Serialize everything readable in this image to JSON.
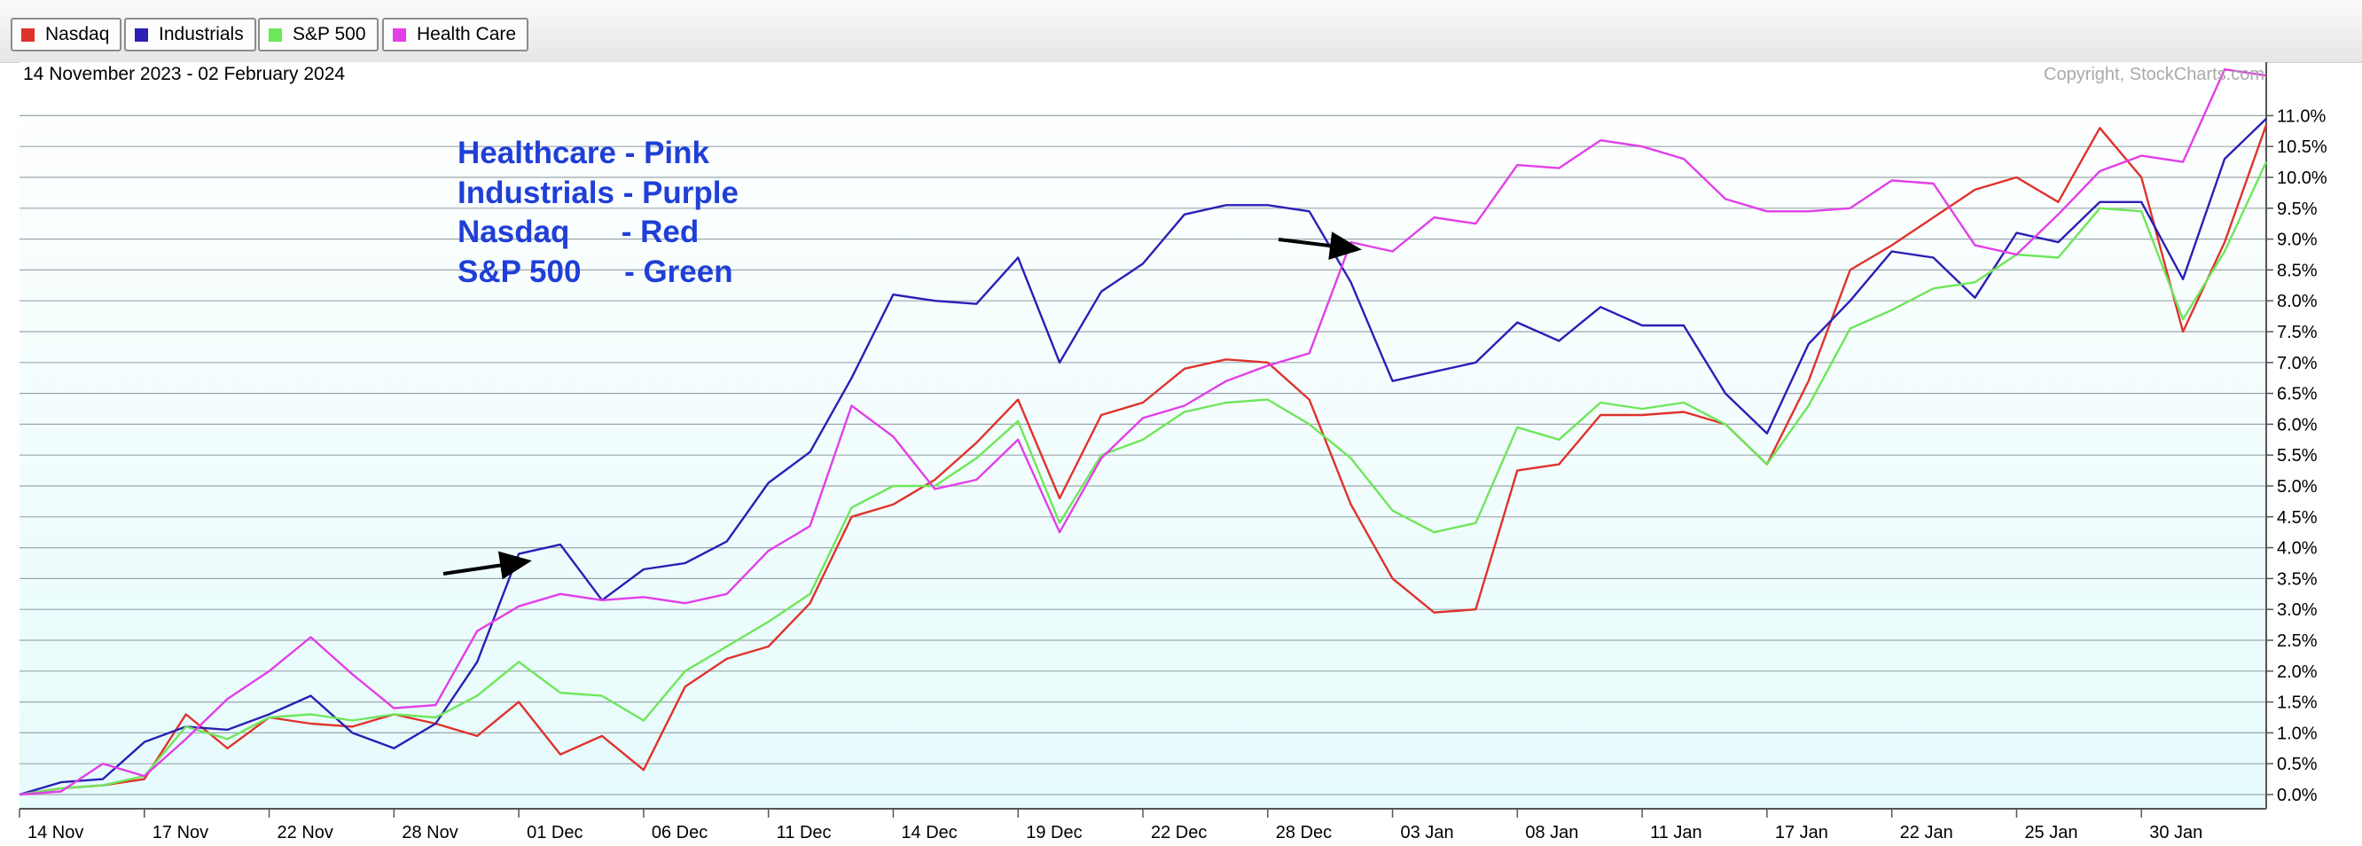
{
  "legend": [
    {
      "name": "Nasdaq",
      "color": "#e0322c"
    },
    {
      "name": "Industrials",
      "color": "#2b1fb5"
    },
    {
      "name": "S&P 500",
      "color": "#6ee65a"
    },
    {
      "name": "Health Care",
      "color": "#e23fe8"
    }
  ],
  "date_range": "14 November 2023 - 02 February 2024",
  "copyright": "Copyright, StockCharts.com",
  "annotations": [
    "Healthcare - Pink",
    "Industrials - Purple",
    "Nasdaq      - Red",
    "S&P 500     - Green"
  ],
  "chart_data": {
    "type": "line",
    "y_unit": "%",
    "ylim": [
      0,
      11.75
    ],
    "y_ticks": [
      "0.0%",
      "0.5%",
      "1.0%",
      "1.5%",
      "2.0%",
      "2.5%",
      "3.0%",
      "3.5%",
      "4.0%",
      "4.5%",
      "5.0%",
      "5.5%",
      "6.0%",
      "6.5%",
      "7.0%",
      "7.5%",
      "8.0%",
      "8.5%",
      "9.0%",
      "9.5%",
      "10.0%",
      "10.5%",
      "11.0%"
    ],
    "x_tick_labels": [
      "14 Nov",
      "17 Nov",
      "22 Nov",
      "28 Nov",
      "01 Dec",
      "06 Dec",
      "11 Dec",
      "14 Dec",
      "19 Dec",
      "22 Dec",
      "28 Dec",
      "03 Jan",
      "08 Jan",
      "11 Jan",
      "17 Jan",
      "22 Jan",
      "25 Jan",
      "30 Jan"
    ],
    "x_tick_positions": [
      0,
      3,
      6,
      9,
      12,
      15,
      18,
      21,
      24,
      27,
      30,
      33,
      36,
      39,
      42,
      45,
      48,
      51
    ],
    "x_count": 55,
    "grid": true,
    "series": [
      {
        "name": "Nasdaq",
        "color": "#e0322c",
        "values": [
          0.0,
          0.1,
          0.15,
          0.25,
          1.3,
          0.75,
          1.25,
          1.15,
          1.1,
          1.3,
          1.15,
          0.95,
          1.5,
          0.65,
          0.95,
          0.4,
          1.75,
          2.2,
          2.4,
          3.1,
          4.5,
          4.7,
          5.1,
          5.7,
          6.4,
          4.8,
          6.15,
          6.35,
          6.9,
          7.05,
          7.0,
          6.4,
          4.7,
          3.5,
          2.95,
          3.0,
          5.25,
          5.35,
          6.15,
          6.15,
          6.2,
          6.0,
          5.35,
          6.7,
          8.5,
          8.9,
          9.35,
          9.8,
          10.0,
          9.6,
          10.8,
          10.0,
          7.5,
          8.95,
          10.85
        ]
      },
      {
        "name": "Industrials",
        "color": "#2b1fb5",
        "values": [
          0.0,
          0.2,
          0.25,
          0.85,
          1.1,
          1.05,
          1.3,
          1.6,
          1.0,
          0.75,
          1.15,
          2.15,
          3.9,
          4.05,
          3.15,
          3.65,
          3.75,
          4.1,
          5.05,
          5.55,
          6.75,
          8.1,
          8.0,
          7.95,
          8.7,
          7.0,
          8.15,
          8.6,
          9.4,
          9.55,
          9.55,
          9.45,
          8.3,
          6.7,
          6.85,
          7.0,
          7.65,
          7.35,
          7.9,
          7.6,
          7.6,
          6.5,
          5.85,
          7.3,
          8.0,
          8.8,
          8.7,
          8.05,
          9.1,
          8.95,
          9.6,
          9.6,
          8.35,
          10.3,
          10.95
        ]
      },
      {
        "name": "S&P 500",
        "color": "#6ee65a",
        "values": [
          0.0,
          0.1,
          0.15,
          0.3,
          1.1,
          0.9,
          1.25,
          1.3,
          1.2,
          1.3,
          1.25,
          1.6,
          2.15,
          1.65,
          1.6,
          1.2,
          2.0,
          2.4,
          2.8,
          3.25,
          4.65,
          5.0,
          5.0,
          5.45,
          6.05,
          4.4,
          5.5,
          5.75,
          6.2,
          6.35,
          6.4,
          6.0,
          5.45,
          4.6,
          4.25,
          4.4,
          5.95,
          5.75,
          6.35,
          6.25,
          6.35,
          6.0,
          5.35,
          6.3,
          7.55,
          7.85,
          8.2,
          8.3,
          8.75,
          8.7,
          9.5,
          9.45,
          7.7,
          8.8,
          10.25
        ]
      },
      {
        "name": "Health Care",
        "color": "#e23fe8",
        "values": [
          0.0,
          0.05,
          0.5,
          0.3,
          0.9,
          1.55,
          2.0,
          2.55,
          1.95,
          1.4,
          1.45,
          2.65,
          3.05,
          3.25,
          3.15,
          3.2,
          3.1,
          3.25,
          3.95,
          4.35,
          6.3,
          5.8,
          4.95,
          5.1,
          5.75,
          4.25,
          5.45,
          6.1,
          6.3,
          6.7,
          6.95,
          7.15,
          8.95,
          8.8,
          9.35,
          9.25,
          10.2,
          10.15,
          10.6,
          10.5,
          10.3,
          9.65,
          9.45,
          9.45,
          9.5,
          9.95,
          9.9,
          8.9,
          8.75,
          9.4,
          10.1,
          10.35,
          10.25,
          11.75,
          11.65
        ]
      }
    ]
  }
}
